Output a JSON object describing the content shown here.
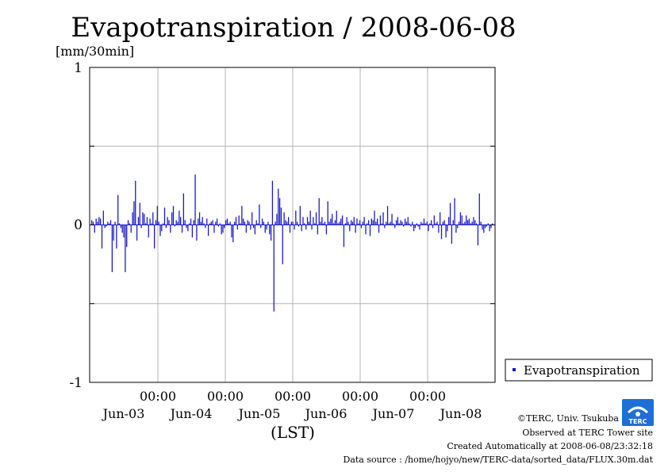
{
  "chart_data": {
    "type": "bar",
    "title": "Evapotranspiration / 2008-06-08",
    "ylabel": "[mm/30min]",
    "xlabel": "(LST)",
    "ylim": [
      -1,
      1
    ],
    "y_ticks": [
      "1",
      "0",
      "-1"
    ],
    "x_time_labels": [
      "00:00",
      "00:00",
      "00:00",
      "00:00",
      "00:00"
    ],
    "x_day_labels": [
      "Jun-03",
      "Jun-04",
      "Jun-05",
      "Jun-06",
      "Jun-07",
      "Jun-08"
    ],
    "grid": true,
    "legend_position": "right-bottom",
    "color": "#1a1acc",
    "series": [
      {
        "name": "Evapotranspiration",
        "values": [
          0.03,
          0.02,
          -0.05,
          0.04,
          0.02,
          0.05,
          0.04,
          -0.15,
          0.09,
          -0.02,
          -0.01,
          0.02,
          0.01,
          0.03,
          -0.3,
          -0.1,
          0.02,
          -0.15,
          0.19,
          0.01,
          -0.02,
          -0.05,
          -0.08,
          -0.3,
          -0.14,
          0.03,
          0.01,
          -0.05,
          0.08,
          0.15,
          0.28,
          -0.1,
          0.05,
          0.14,
          -0.02,
          0.08,
          0.07,
          0.01,
          0.05,
          -0.08,
          0.04,
          0.01,
          0.08,
          -0.15,
          0.03,
          0.12,
          0.02,
          -0.07,
          -0.04,
          0.01,
          0.11,
          -0.02,
          0.05,
          0.03,
          -0.05,
          0.08,
          0.12,
          -0.01,
          0.03,
          0.02,
          0.09,
          0.05,
          -0.05,
          0.2,
          0.03,
          -0.02,
          -0.04,
          0.01,
          0.04,
          -0.08,
          0.03,
          0.32,
          -0.1,
          0.04,
          0.08,
          0.02,
          0.05,
          0.01,
          -0.02,
          0.04,
          -0.07,
          0.01,
          0.02,
          0.03,
          -0.05,
          0.02,
          0.04,
          -0.01,
          0.01,
          -0.06,
          -0.05,
          -0.02,
          0.03,
          0.04,
          0.01,
          0.02,
          -0.08,
          -0.11,
          0.02,
          0.05,
          -0.03,
          0.06,
          0.01,
          0.12,
          0.04,
          0.02,
          -0.05,
          0.03,
          0.02,
          -0.03,
          0.08,
          -0.02,
          -0.06,
          0.03,
          0.01,
          0.13,
          -0.02,
          0.04,
          0.02,
          -0.05,
          -0.03,
          0.02,
          -0.06,
          -0.1,
          0.28,
          -0.55,
          0.02,
          0.07,
          0.23,
          0.17,
          0.11,
          -0.25,
          0.08,
          0.03,
          0.02,
          0.05,
          -0.05,
          0.02,
          0.02,
          -0.03,
          0.09,
          0.02,
          -0.01,
          0.12,
          -0.04,
          0.05,
          0.01,
          -0.03,
          0.05,
          0.02,
          0.09,
          -0.03,
          0.05,
          0.01,
          0.08,
          -0.06,
          0.17,
          0.02,
          0.05,
          0.01,
          0.02,
          -0.06,
          0.15,
          0.02,
          0.04,
          0.07,
          0.01,
          0.03,
          0.09,
          0.01,
          0.02,
          0.04,
          0.06,
          -0.14,
          0.01,
          0.05,
          0.02,
          -0.04,
          0.03,
          0.02,
          0.05,
          -0.05,
          0.04,
          0.01,
          0.03,
          -0.02,
          0.02,
          0.05,
          -0.06,
          0.01,
          0.03,
          -0.07,
          0.04,
          0.03,
          0.09,
          0.02,
          0.04,
          -0.05,
          0.06,
          0.01,
          0.08,
          -0.02,
          0.02,
          0.12,
          0.01,
          0.02,
          0.07,
          0.01,
          -0.02,
          0.03,
          0.05,
          0.01,
          0.03,
          0.02,
          -0.01,
          0.04,
          0.02,
          0.05,
          0.01,
          -0.01,
          0.02,
          -0.04,
          -0.02,
          0.01,
          -0.01,
          -0.03,
          0.02,
          0.01,
          0.04,
          0.01,
          0.02,
          -0.04,
          0.01,
          0.03,
          -0.02,
          0.06,
          0.01,
          0.02,
          -0.05,
          0.08,
          -0.09,
          0.02,
          0.03,
          -0.08,
          -0.04,
          0.05,
          0.14,
          -0.12,
          0.03,
          0.17,
          -0.05,
          -0.02,
          0.02,
          0.08,
          0.06,
          0.01,
          0.02,
          0.06,
          0.03,
          0.04,
          0.01,
          0.02,
          0.05,
          0.03,
          0.01,
          -0.13,
          0.2,
          0.02,
          -0.03,
          -0.05,
          -0.02,
          -0.01,
          0.01,
          -0.04,
          -0.02,
          0.01
        ]
      }
    ]
  },
  "credits": {
    "copyright": "©TERC, Univ. Tsukuba",
    "site": "Observed at TERC Tower site",
    "created": "Created Automatically at 2008-06-08/23:32:18",
    "source": "Data source : /home/hojyo/new/TERC-data/sorted_data/FLUX.30m.dat"
  },
  "logo": {
    "text": "TERC"
  }
}
